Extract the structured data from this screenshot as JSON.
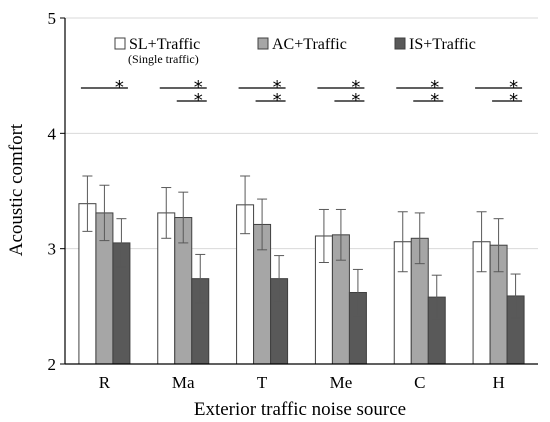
{
  "chart_data": {
    "type": "bar",
    "xlabel": "Exterior traffic noise source",
    "ylabel": "Acoustic comfort",
    "ylim": [
      2,
      5
    ],
    "yticks": [
      2,
      3,
      4,
      5
    ],
    "grid": true,
    "legend_position": "top",
    "categories": [
      "R",
      "Ma",
      "T",
      "Me",
      "C",
      "H"
    ],
    "series": [
      {
        "name": "SL+Traffic",
        "subtitle": "(Single traffic)",
        "color": "#ffffff",
        "values": [
          3.39,
          3.31,
          3.38,
          3.11,
          3.06,
          3.06
        ],
        "errors": [
          0.24,
          0.22,
          0.25,
          0.23,
          0.26,
          0.26
        ]
      },
      {
        "name": "AC+Traffic",
        "color": "#a6a6a6",
        "values": [
          3.31,
          3.27,
          3.21,
          3.12,
          3.09,
          3.03
        ],
        "errors": [
          0.24,
          0.22,
          0.22,
          0.22,
          0.22,
          0.23
        ]
      },
      {
        "name": "IS+Traffic",
        "color": "#595959",
        "values": [
          3.05,
          2.74,
          2.74,
          2.62,
          2.58,
          2.59
        ],
        "errors": [
          0.21,
          0.21,
          0.2,
          0.2,
          0.19,
          0.19
        ]
      }
    ],
    "significance": [
      {
        "category": "R",
        "brackets": [
          {
            "from": 0,
            "to": 2,
            "label": "*"
          }
        ]
      },
      {
        "category": "Ma",
        "brackets": [
          {
            "from": 0,
            "to": 2,
            "label": "*"
          },
          {
            "from": 1,
            "to": 2,
            "label": "*"
          }
        ]
      },
      {
        "category": "T",
        "brackets": [
          {
            "from": 0,
            "to": 2,
            "label": "*"
          },
          {
            "from": 1,
            "to": 2,
            "label": "*"
          }
        ]
      },
      {
        "category": "Me",
        "brackets": [
          {
            "from": 0,
            "to": 2,
            "label": "*"
          },
          {
            "from": 1,
            "to": 2,
            "label": "*"
          }
        ]
      },
      {
        "category": "C",
        "brackets": [
          {
            "from": 0,
            "to": 2,
            "label": "*"
          },
          {
            "from": 1,
            "to": 2,
            "label": "*"
          }
        ]
      },
      {
        "category": "H",
        "brackets": [
          {
            "from": 0,
            "to": 2,
            "label": "*"
          },
          {
            "from": 1,
            "to": 2,
            "label": "*"
          }
        ]
      }
    ]
  }
}
